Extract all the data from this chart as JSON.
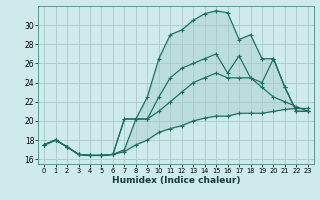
{
  "xlabel": "Humidex (Indice chaleur)",
  "background_color": "#ceeaea",
  "grid_color": "#aacaca",
  "line_color": "#1a6e62",
  "xlim": [
    -0.5,
    23.5
  ],
  "ylim": [
    15.5,
    32.0
  ],
  "xticks": [
    0,
    1,
    2,
    3,
    4,
    5,
    6,
    7,
    8,
    9,
    10,
    11,
    12,
    13,
    14,
    15,
    16,
    17,
    18,
    19,
    20,
    21,
    22,
    23
  ],
  "yticks": [
    16,
    18,
    20,
    22,
    24,
    26,
    28,
    30
  ],
  "series": [
    [
      17.5,
      18.0,
      17.3,
      16.5,
      16.4,
      16.4,
      16.5,
      17.0,
      20.2,
      22.5,
      26.5,
      29.0,
      29.5,
      30.5,
      31.2,
      31.5,
      31.3,
      28.5,
      29.0,
      26.5,
      26.5,
      23.5,
      21.0,
      21.0
    ],
    [
      17.5,
      18.0,
      17.3,
      16.5,
      16.4,
      16.4,
      16.5,
      20.2,
      20.2,
      20.2,
      22.5,
      24.5,
      25.5,
      26.0,
      26.5,
      27.0,
      25.0,
      26.8,
      24.5,
      24.0,
      26.5,
      23.5,
      21.0,
      21.0
    ],
    [
      17.5,
      18.0,
      17.3,
      16.5,
      16.4,
      16.4,
      16.5,
      20.2,
      20.2,
      20.2,
      21.0,
      22.0,
      23.0,
      24.0,
      24.5,
      25.0,
      24.5,
      24.5,
      24.5,
      23.5,
      22.5,
      22.0,
      21.5,
      21.0
    ],
    [
      17.5,
      18.0,
      17.3,
      16.5,
      16.4,
      16.4,
      16.5,
      16.8,
      17.5,
      18.0,
      18.8,
      19.2,
      19.5,
      20.0,
      20.3,
      20.5,
      20.5,
      20.8,
      20.8,
      20.8,
      21.0,
      21.2,
      21.3,
      21.3
    ]
  ],
  "x_vals": [
    0,
    1,
    2,
    3,
    4,
    5,
    6,
    7,
    8,
    9,
    10,
    11,
    12,
    13,
    14,
    15,
    16,
    17,
    18,
    19,
    20,
    21,
    22,
    23
  ]
}
